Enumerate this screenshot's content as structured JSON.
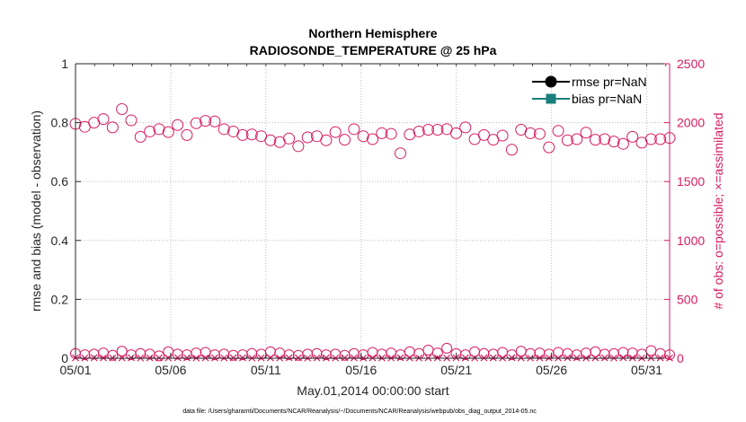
{
  "chart_data": {
    "type": "scatter",
    "title": "Northern Hemisphere",
    "subtitle": "RADIOSONDE_TEMPERATURE @ 25 hPa",
    "xlabel": "May.01,2014 00:00:00 start",
    "ylabel_left": "rmse and bias (model - observation)",
    "ylabel_right": "# of obs: o=possible; ×=assimilated",
    "footnote": "data file: /Users/gharamti/Documents/NCAR/Reanalysis/~/Documents/NCAR/Reanalysis/webpub/obs_diag_output_2014-05.nc",
    "ylim_left": [
      0,
      1
    ],
    "ylim_right": [
      0,
      2500
    ],
    "xlim_days": [
      1,
      32.2
    ],
    "grid": true,
    "legend_position": "top-right",
    "x_ticks": [
      {
        "day": 1,
        "label": "05/01"
      },
      {
        "day": 6,
        "label": "05/06"
      },
      {
        "day": 11,
        "label": "05/11"
      },
      {
        "day": 16,
        "label": "05/16"
      },
      {
        "day": 21,
        "label": "05/21"
      },
      {
        "day": 26,
        "label": "05/26"
      },
      {
        "day": 31,
        "label": "05/31"
      }
    ],
    "y_ticks_left": [
      "0",
      "0.2",
      "0.4",
      "0.6",
      "0.8",
      "1"
    ],
    "y_ticks_right": [
      "0",
      "500",
      "1000",
      "1500",
      "2000",
      "2500"
    ],
    "series": [
      {
        "name": "rmse pr=NaN",
        "color": "#000000",
        "marker": "circle"
      },
      {
        "name": "bias pr=NaN",
        "color": "#1a7f7a",
        "marker": "square"
      }
    ],
    "obs_color": "#d81b60",
    "obs_possible_high": [
      1990,
      1965,
      2000,
      2030,
      1960,
      2115,
      2020,
      1880,
      1925,
      1945,
      1920,
      1980,
      1895,
      1995,
      2015,
      2010,
      1945,
      1925,
      1895,
      1900,
      1885,
      1850,
      1835,
      1865,
      1800,
      1875,
      1885,
      1850,
      1920,
      1855,
      1945,
      1885,
      1860,
      1910,
      1905,
      1740,
      1900,
      1925,
      1940,
      1940,
      1945,
      1910,
      1960,
      1860,
      1895,
      1855,
      1890,
      1770,
      1940,
      1910,
      1905,
      1790,
      1930,
      1850,
      1860,
      1915,
      1855,
      1860,
      1840,
      1820,
      1880,
      1830,
      1860,
      1860,
      1870
    ],
    "obs_possible_low": [
      40,
      30,
      35,
      45,
      25,
      60,
      30,
      40,
      35,
      20,
      55,
      35,
      30,
      45,
      50,
      30,
      35,
      25,
      30,
      40,
      35,
      55,
      45,
      30,
      25,
      35,
      40,
      30,
      35,
      25,
      40,
      30,
      50,
      35,
      45,
      30,
      55,
      40,
      70,
      45,
      85,
      40,
      30,
      55,
      40,
      35,
      50,
      30,
      60,
      40,
      45,
      35,
      50,
      40,
      30,
      45,
      55,
      35,
      40,
      50,
      45,
      35,
      65,
      40,
      30
    ],
    "obs_assimilated": [
      3,
      2,
      4,
      3,
      2,
      3,
      4,
      2,
      3,
      3,
      2,
      4,
      3,
      2,
      3,
      3,
      2,
      4,
      3,
      2,
      3,
      3,
      2,
      4,
      3,
      2,
      3,
      3,
      2,
      4,
      3,
      2,
      3,
      3,
      2,
      4,
      3,
      2,
      3,
      3,
      2,
      4,
      3,
      2,
      3,
      3,
      2,
      4,
      3,
      2,
      3,
      3,
      2,
      4,
      3,
      2,
      3,
      3,
      2,
      4,
      3,
      2,
      3,
      3,
      2
    ]
  }
}
